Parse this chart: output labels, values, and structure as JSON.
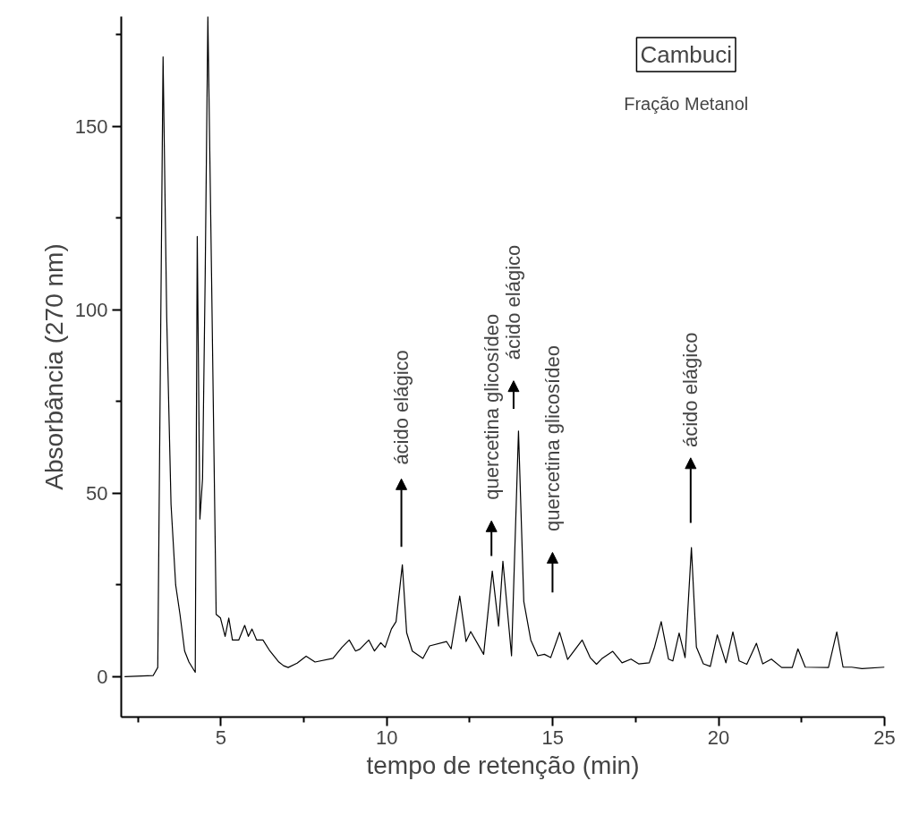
{
  "chart_data": {
    "type": "line",
    "title": "Cambuci",
    "subtitle": "Fração Metanol",
    "xlabel": "tempo de retenção (min)",
    "ylabel": "Absorbância (270 nm)",
    "xlim": [
      2,
      25
    ],
    "ylim": [
      -11,
      180
    ],
    "xticks": [
      {
        "value": 2.5,
        "label": null
      },
      5,
      {
        "value": 7.5,
        "label": null
      },
      10,
      {
        "value": 12.5,
        "label": null
      },
      15,
      {
        "value": 17.5,
        "label": null
      },
      20,
      {
        "value": 22.5,
        "label": null
      },
      25
    ],
    "yticks": [
      0,
      {
        "value": 25,
        "label": null
      },
      50,
      {
        "value": 75,
        "label": null
      },
      100,
      {
        "value": 125,
        "label": null
      },
      150,
      {
        "value": 175,
        "label": null
      }
    ],
    "grid": false,
    "marker": "none",
    "line_style": "solid",
    "x": [
      2.1,
      2.96,
      3.1,
      3.26,
      3.37,
      3.5,
      3.64,
      3.77,
      3.91,
      4.04,
      4.23,
      4.29,
      4.37,
      4.45,
      4.53,
      4.61,
      4.72,
      4.86,
      4.99,
      5.13,
      5.24,
      5.35,
      5.54,
      5.72,
      5.83,
      5.94,
      6.08,
      6.27,
      6.48,
      6.75,
      6.89,
      7.03,
      7.3,
      7.57,
      7.84,
      8.38,
      8.65,
      8.87,
      9.06,
      9.19,
      9.46,
      9.63,
      9.82,
      9.95,
      10.14,
      10.28,
      10.47,
      10.6,
      10.77,
      11.09,
      11.29,
      11.8,
      11.94,
      12.2,
      12.39,
      12.53,
      12.92,
      13.18,
      13.37,
      13.5,
      13.76,
      13.97,
      14.13,
      14.34,
      14.55,
      14.75,
      14.94,
      15.21,
      15.45,
      15.89,
      16.13,
      16.32,
      16.48,
      16.81,
      17.09,
      17.36,
      17.59,
      17.91,
      18.07,
      18.27,
      18.49,
      18.62,
      18.81,
      18.99,
      19.18,
      19.33,
      19.54,
      19.75,
      19.96,
      20.22,
      20.43,
      20.62,
      20.85,
      21.14,
      21.33,
      21.59,
      21.9,
      22.22,
      22.39,
      22.61,
      23.31,
      23.56,
      23.75,
      24.01,
      24.32,
      25
    ],
    "series": [
      {
        "color": "#000000",
        "values": [
          0,
          0.3,
          2.5,
          169,
          98,
          47,
          25,
          17,
          7,
          4,
          1.2,
          120,
          43,
          54,
          110,
          180,
          110,
          17,
          16,
          11,
          16,
          10,
          10,
          14,
          11,
          13,
          10,
          10,
          7,
          4,
          3,
          2.5,
          3.7,
          5.6,
          4,
          5,
          8,
          10,
          7,
          7.5,
          10,
          7,
          9.3,
          8,
          13,
          15,
          30.5,
          12,
          7,
          5,
          8.4,
          9.6,
          7.6,
          22,
          9.6,
          12.3,
          6.1,
          28.8,
          13.8,
          31.5,
          5.7,
          67,
          20.5,
          10,
          5.7,
          6.1,
          5.2,
          12.1,
          4.7,
          10,
          5.2,
          3.4,
          4.9,
          6.9,
          3.8,
          4.8,
          3.5,
          3.8,
          8.1,
          15,
          4.8,
          4.3,
          11.9,
          5.2,
          35.2,
          8.1,
          3.5,
          2.8,
          11.4,
          3.8,
          12.2,
          4.3,
          3.4,
          9.1,
          3.5,
          4.8,
          2.5,
          2.5,
          7.6,
          2.6,
          2.5,
          12.2,
          2.6,
          2.6,
          2.2,
          2.6
        ]
      }
    ],
    "annotations": [
      "ácido elágico",
      "quercetina glicosídeo",
      "ácido elágico",
      "quercetina glicosídeo",
      "ácido elágico"
    ]
  }
}
